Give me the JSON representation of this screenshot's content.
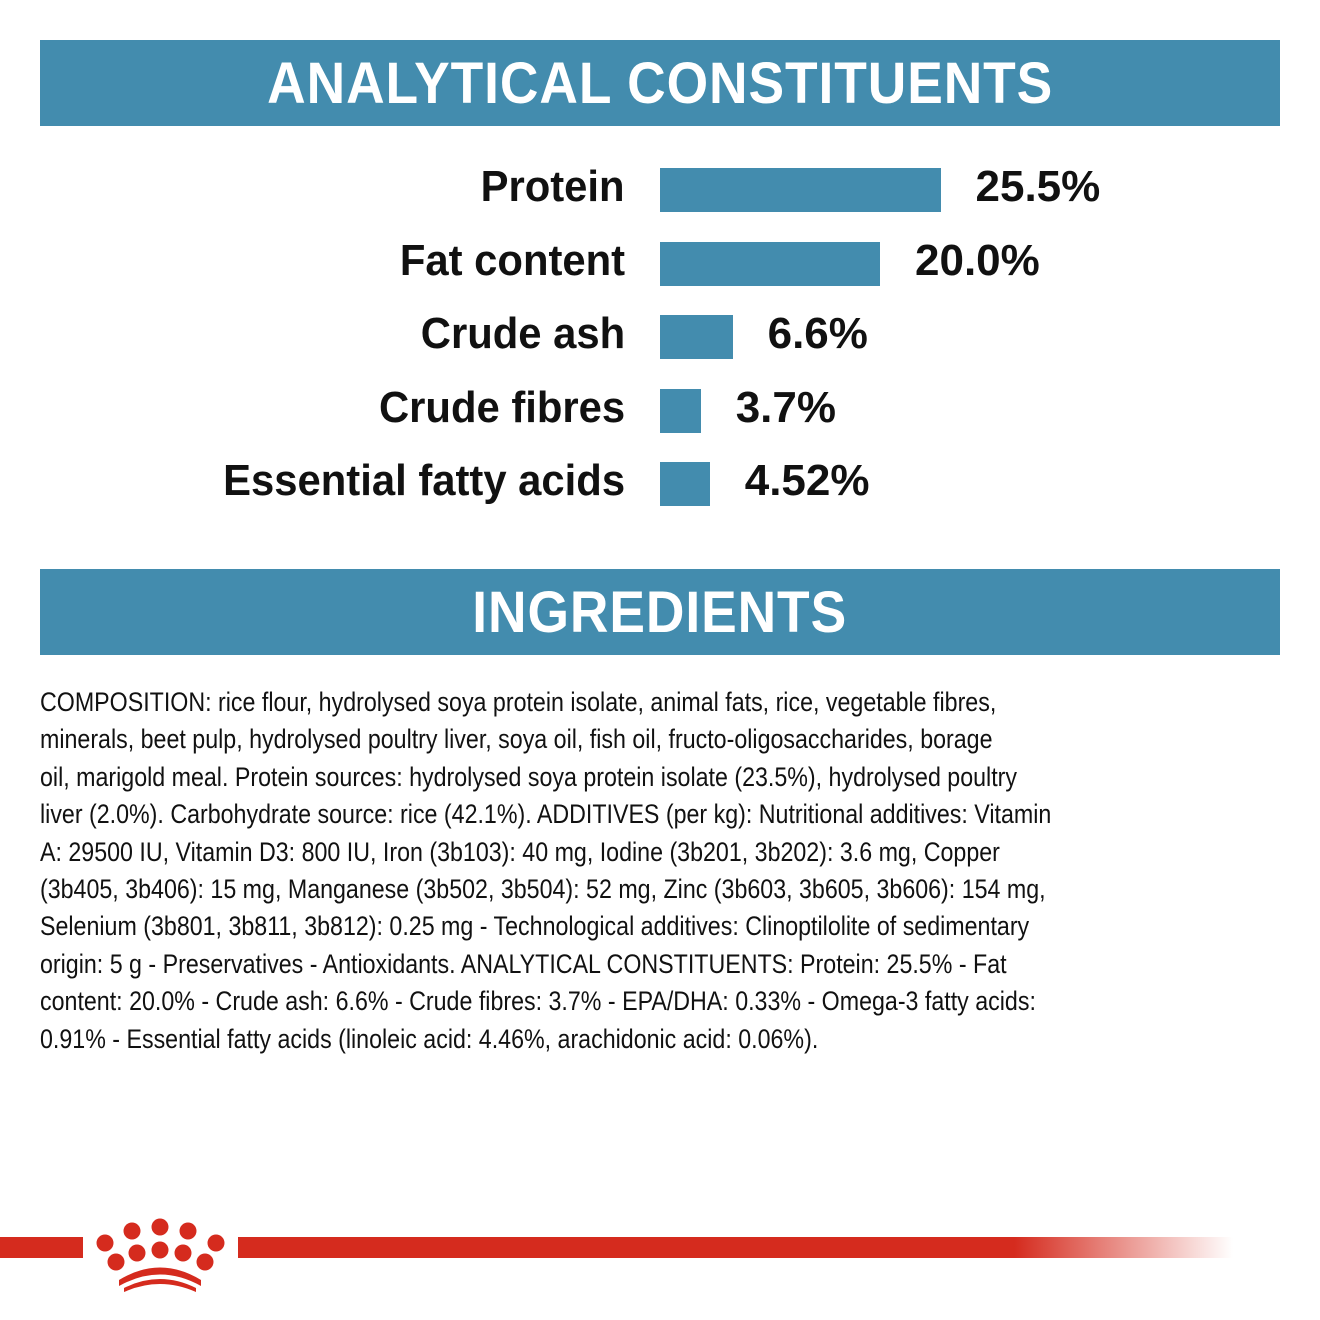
{
  "analytical": {
    "title": "ANALYTICAL CONSTITUENTS"
  },
  "chart_data": {
    "type": "bar",
    "orientation": "horizontal",
    "categories": [
      "Protein",
      "Fat content",
      "Crude ash",
      "Crude fibres",
      "Essential fatty acids"
    ],
    "values": [
      25.5,
      20.0,
      6.6,
      3.7,
      4.52
    ],
    "data_labels": [
      "25.5%",
      "20.0%",
      "6.6%",
      "3.7%",
      "4.52%"
    ],
    "unit": "%",
    "grid": false,
    "axes_visible": false,
    "bar_color": "#438cae"
  },
  "ingredients": {
    "title": "INGREDIENTS",
    "lines": [
      "COMPOSITION: rice flour, hydrolysed soya protein isolate, animal fats, rice, vegetable fibres,",
      "minerals, beet pulp, hydrolysed poultry liver, soya oil, fish oil, fructo-oligosaccharides, borage",
      "oil, marigold meal. Protein sources: hydrolysed soya protein isolate (23.5%), hydrolysed poultry",
      "liver (2.0%). Carbohydrate source: rice (42.1%). ADDITIVES (per kg): Nutritional additives: Vitamin",
      "A: 29500 IU, Vitamin D3: 800 IU, Iron (3b103): 40 mg, Iodine (3b201, 3b202): 3.6 mg, Copper",
      "(3b405, 3b406): 15 mg, Manganese (3b502, 3b504): 52 mg, Zinc (3b603, 3b605, 3b606): 154 mg,",
      "Selenium (3b801, 3b811, 3b812): 0.25 mg - Technological additives: Clinoptilolite of sedimentary",
      "origin: 5 g - Preservatives - Antioxidants. ANALYTICAL CONSTITUENTS: Protein: 25.5% - Fat",
      "content: 20.0% - Crude ash: 6.6% - Crude fibres: 3.7% - EPA/DHA: 0.33% - Omega-3 fatty acids:",
      "0.91% - Essential fatty acids (linoleic acid: 4.46%, arachidonic acid: 0.06%)."
    ]
  },
  "footer": {
    "logo": "royal-canin-crown-logo",
    "brand_color": "#d52b1e"
  }
}
